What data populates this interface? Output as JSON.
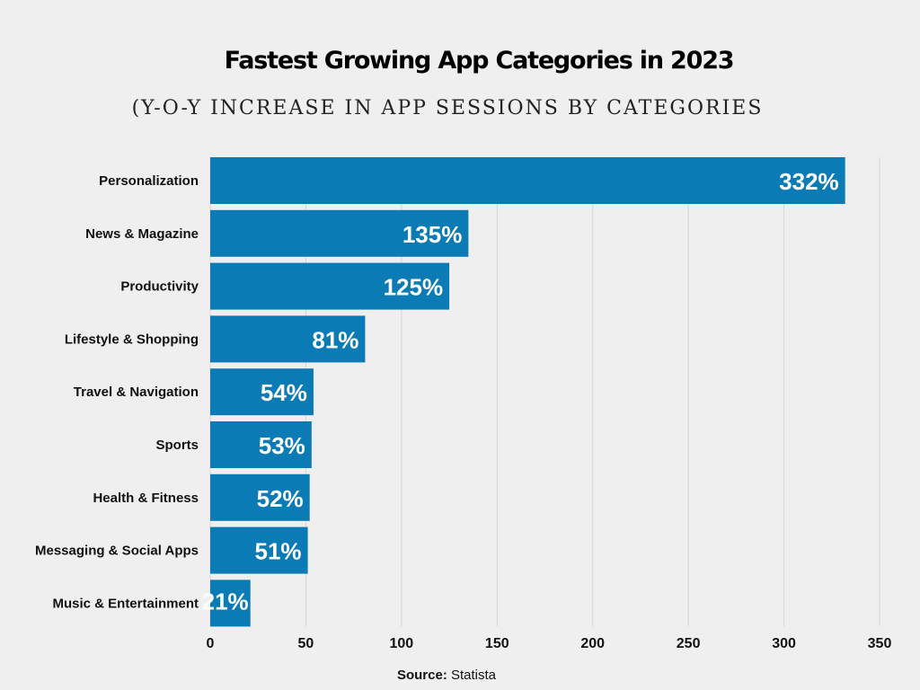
{
  "chart_data": {
    "type": "bar",
    "orientation": "horizontal",
    "title": "Fastest Growing App Categories in 2023",
    "subtitle": "(Y-O-Y INCREASE IN APP SESSIONS BY CATEGORIES",
    "categories": [
      "Personalization",
      "News & Magazine",
      "Productivity",
      "Lifestyle & Shopping",
      "Travel & Navigation",
      "Sports",
      "Health & Fitness",
      "Messaging & Social Apps",
      "Music & Entertainment"
    ],
    "values": [
      332,
      135,
      125,
      81,
      54,
      53,
      52,
      51,
      21
    ],
    "data_labels": [
      "332%",
      "135%",
      "125%",
      "81%",
      "54%",
      "53%",
      "52%",
      "51%",
      "21%"
    ],
    "xlim": [
      0,
      350
    ],
    "xticks": [
      0,
      50,
      100,
      150,
      200,
      250,
      300,
      350
    ],
    "grid": "vertical",
    "bar_color": "#0a7bb4",
    "source_label": "Source:",
    "source_value": "Statista"
  }
}
